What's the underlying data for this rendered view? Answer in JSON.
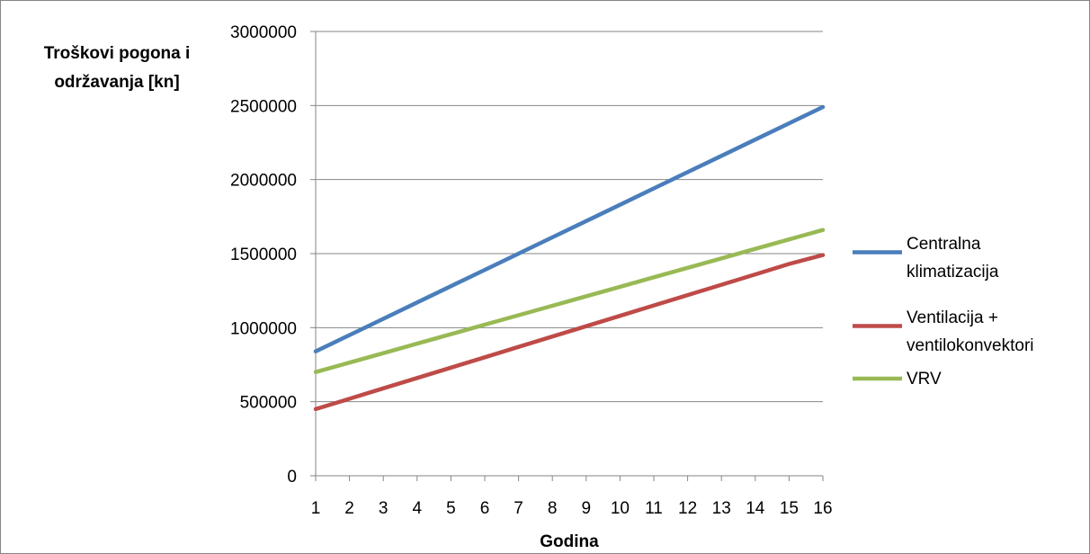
{
  "chart_data": {
    "type": "line",
    "x": [
      1,
      2,
      3,
      4,
      5,
      6,
      7,
      8,
      9,
      10,
      11,
      12,
      13,
      14,
      15,
      16
    ],
    "xlabel": "Godina",
    "ylabel_lines": [
      "Troškovi pogona i",
      "održavanja [kn]"
    ],
    "ylim": [
      0,
      3000000
    ],
    "yticks": [
      "0",
      "500000",
      "1000000",
      "1500000",
      "2000000",
      "2500000",
      "3000000"
    ],
    "ytick_values": [
      0,
      500000,
      1000000,
      1500000,
      2000000,
      2500000,
      3000000
    ],
    "xticks": [
      "1",
      "2",
      "3",
      "4",
      "5",
      "6",
      "7",
      "8",
      "9",
      "10",
      "11",
      "12",
      "13",
      "14",
      "15",
      "16"
    ],
    "grid": "horizontal",
    "legend_position": "right",
    "series": [
      {
        "name_lines": [
          "Centralna",
          "klimatizacija"
        ],
        "color": "#4a7ebb",
        "values": [
          840000,
          950000,
          1060000,
          1170000,
          1280000,
          1390000,
          1500000,
          1610000,
          1720000,
          1830000,
          1940000,
          2050000,
          2160000,
          2270000,
          2380000,
          2490000
        ]
      },
      {
        "name_lines": [
          "Ventilacija +",
          "ventilokonvektori"
        ],
        "color": "#be4b48",
        "values": [
          450000,
          520000,
          590000,
          660000,
          730000,
          800000,
          870000,
          940000,
          1010000,
          1080000,
          1150000,
          1220000,
          1290000,
          1360000,
          1430000,
          1490000
        ]
      },
      {
        "name_lines": [
          "VRV"
        ],
        "color": "#98b954",
        "values": [
          700000,
          764000,
          828000,
          892000,
          956000,
          1020000,
          1084000,
          1148000,
          1212000,
          1276000,
          1340000,
          1404000,
          1468000,
          1532000,
          1596000,
          1660000
        ]
      }
    ]
  }
}
